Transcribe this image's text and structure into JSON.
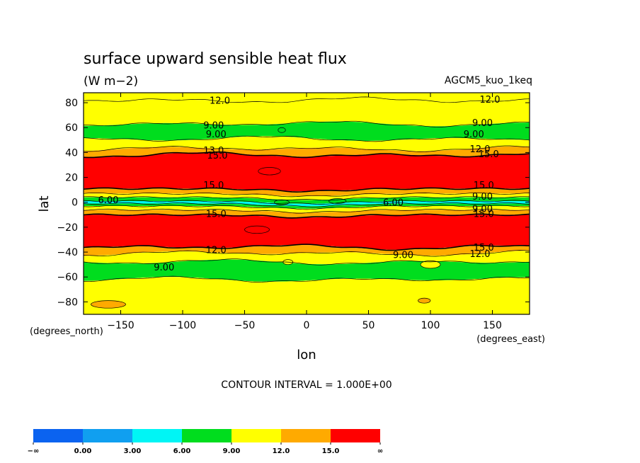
{
  "chart_data": {
    "type": "heatmap",
    "title": "surface upward sensible heat flux",
    "units": "(W m−2)",
    "run_label": "AGCM5_kuo_1keq",
    "xlabel": "lon",
    "ylabel": "lat",
    "x_unit_note": "(degrees_east)",
    "y_unit_note": "(degrees_north)",
    "xlim": [
      -180,
      180
    ],
    "ylim": [
      -90,
      90
    ],
    "x_ticks": [
      {
        "value": -150,
        "label": "−150"
      },
      {
        "value": -100,
        "label": "−100"
      },
      {
        "value": -50,
        "label": "−50"
      },
      {
        "value": 0,
        "label": "0"
      },
      {
        "value": 50,
        "label": "50"
      },
      {
        "value": 100,
        "label": "100"
      },
      {
        "value": 150,
        "label": "150"
      }
    ],
    "y_ticks": [
      {
        "value": 80,
        "label": "80"
      },
      {
        "value": 60,
        "label": "60"
      },
      {
        "value": 40,
        "label": "40"
      },
      {
        "value": 20,
        "label": "20"
      },
      {
        "value": 0,
        "label": "0"
      },
      {
        "value": -20,
        "label": "−20"
      },
      {
        "value": -40,
        "label": "−40"
      },
      {
        "value": -60,
        "label": "−60"
      },
      {
        "value": -80,
        "label": "−80"
      }
    ],
    "contour_interval_text": "CONTOUR INTERVAL = 1.000E+00",
    "colorbar": {
      "colors": [
        "#0b63f0",
        "#109ff0",
        "#00f5f5",
        "#00dd1e",
        "#ffff00",
        "#ffaa00",
        "#ff0000"
      ],
      "labels": [
        "−∞",
        "0.00",
        "3.00",
        "6.00",
        "9.00",
        "12.0",
        "15.0",
        "∞"
      ]
    },
    "bands": [
      {
        "lat": [
          82,
          88
        ],
        "level": 4
      },
      {
        "lat": [
          63,
          82
        ],
        "level": 4
      },
      {
        "lat": [
          51,
          63
        ],
        "level": 3
      },
      {
        "lat": [
          43,
          51
        ],
        "level": 4
      },
      {
        "lat": [
          38,
          43
        ],
        "level": 5
      },
      {
        "lat": [
          11,
          38
        ],
        "level": 6
      },
      {
        "lat": [
          7,
          11
        ],
        "level": 5
      },
      {
        "lat": [
          4,
          7
        ],
        "level": 4
      },
      {
        "lat": [
          1,
          4
        ],
        "level": 3
      },
      {
        "lat": [
          -1,
          1
        ],
        "level": 2
      },
      {
        "lat": [
          -3,
          -1
        ],
        "level": 3
      },
      {
        "lat": [
          -6,
          -3
        ],
        "level": 4
      },
      {
        "lat": [
          -10,
          -6
        ],
        "level": 5
      },
      {
        "lat": [
          -36,
          -10
        ],
        "level": 6
      },
      {
        "lat": [
          -41,
          -36
        ],
        "level": 5
      },
      {
        "lat": [
          -48,
          -41
        ],
        "level": 4
      },
      {
        "lat": [
          -62,
          -48
        ],
        "level": 3
      },
      {
        "lat": [
          -90,
          -62
        ],
        "level": 4
      }
    ],
    "contour_labels": [
      {
        "text": "12.0",
        "lon": -70,
        "lat": 82
      },
      {
        "text": "12.0",
        "lon": 148,
        "lat": 83
      },
      {
        "text": "9.00",
        "lon": -75,
        "lat": 62
      },
      {
        "text": "9.00",
        "lon": -73,
        "lat": 55
      },
      {
        "text": "9.00",
        "lon": 142,
        "lat": 64
      },
      {
        "text": "9.00",
        "lon": 135,
        "lat": 55
      },
      {
        "text": "13.0",
        "lon": -75,
        "lat": 42
      },
      {
        "text": "15.0",
        "lon": -72,
        "lat": 38
      },
      {
        "text": "12.0",
        "lon": 140,
        "lat": 43
      },
      {
        "text": "15.0",
        "lon": 147,
        "lat": 39
      },
      {
        "text": "15.0",
        "lon": -75,
        "lat": 14
      },
      {
        "text": "15.0",
        "lon": 143,
        "lat": 14
      },
      {
        "text": "6.00",
        "lon": -160,
        "lat": 2
      },
      {
        "text": "6.00",
        "lon": 70,
        "lat": 0
      },
      {
        "text": "9.00",
        "lon": 142,
        "lat": 5
      },
      {
        "text": "9.00",
        "lon": 142,
        "lat": -5
      },
      {
        "text": "15.0",
        "lon": -73,
        "lat": -9
      },
      {
        "text": "15.0",
        "lon": 143,
        "lat": -9
      },
      {
        "text": "15.0",
        "lon": 143,
        "lat": -36
      },
      {
        "text": "12.0",
        "lon": -73,
        "lat": -38
      },
      {
        "text": "12.0",
        "lon": 140,
        "lat": -41
      },
      {
        "text": "9.00",
        "lon": 78,
        "lat": -42
      },
      {
        "text": "9.00",
        "lon": -115,
        "lat": -52
      }
    ]
  }
}
